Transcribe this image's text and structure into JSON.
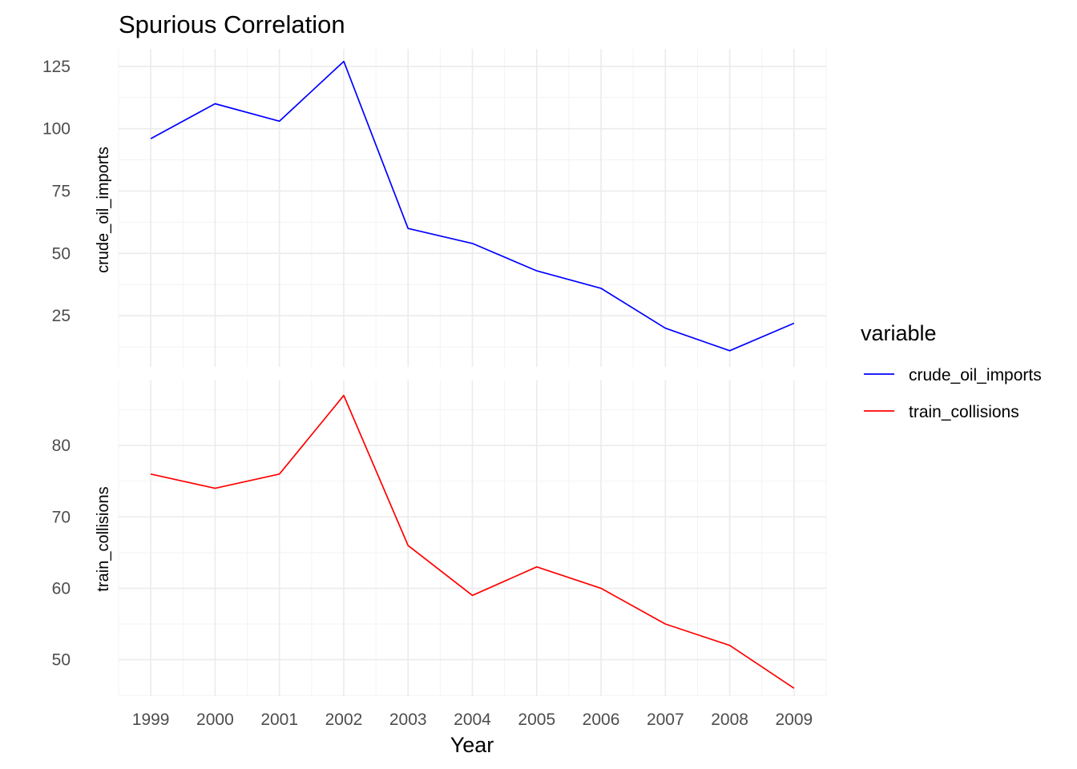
{
  "chart_data": {
    "type": "line",
    "title": "Spurious Correlation",
    "xlabel": "Year",
    "x": [
      1999,
      2000,
      2001,
      2002,
      2003,
      2004,
      2005,
      2006,
      2007,
      2008,
      2009
    ],
    "grid": true,
    "legend": {
      "title": "variable",
      "position": "right",
      "entries": [
        {
          "label": "crude_oil_imports",
          "color": "#0000ff"
        },
        {
          "label": "train_collisions",
          "color": "#ff0000"
        }
      ]
    },
    "panels": [
      {
        "ylabel": "crude_oil_imports",
        "yticks": [
          25,
          50,
          75,
          100,
          125
        ],
        "ylim": [
          4.5,
          132
        ],
        "color": "#0000ff",
        "values": [
          96,
          110,
          103,
          127,
          60,
          54,
          43,
          36,
          20,
          11,
          22
        ]
      },
      {
        "ylabel": "train_collisions",
        "yticks": [
          50,
          60,
          70,
          80
        ],
        "ylim": [
          44.9,
          89.1
        ],
        "color": "#ff0000",
        "values": [
          76,
          74,
          76,
          87,
          66,
          59,
          63,
          60,
          55,
          52,
          46
        ]
      }
    ]
  }
}
